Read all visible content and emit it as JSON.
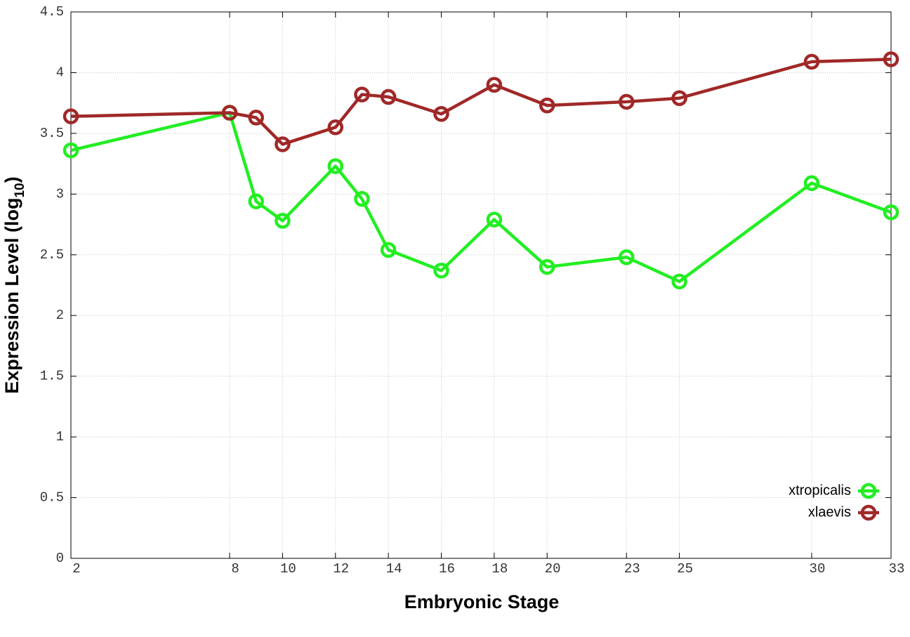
{
  "chart_data": {
    "type": "line",
    "x_label": "Embryonic Stage",
    "y_label": {
      "text": "Expression Level (log",
      "subscript": "10",
      "suffix": ")"
    },
    "x": [
      2,
      8,
      9,
      10,
      12,
      13,
      14,
      16,
      18,
      20,
      23,
      25,
      30,
      33
    ],
    "series": [
      {
        "name": "xtropicalis",
        "color": "#22ee22",
        "values": [
          3.36,
          3.67,
          2.94,
          2.78,
          3.23,
          2.96,
          2.54,
          2.37,
          2.79,
          2.4,
          2.48,
          2.28,
          3.09,
          2.85
        ]
      },
      {
        "name": "xlaevis",
        "color": "#a02828",
        "values": [
          3.64,
          3.67,
          3.63,
          3.41,
          3.55,
          3.82,
          3.8,
          3.66,
          3.9,
          3.73,
          3.76,
          3.79,
          4.09,
          4.11
        ]
      }
    ],
    "xlim": [
      2,
      33
    ],
    "xticks": [
      2,
      8,
      10,
      12,
      14,
      16,
      18,
      20,
      23,
      25,
      30,
      33
    ],
    "ylim": [
      0,
      4.5
    ],
    "yticks": [
      0,
      0.5,
      1,
      1.5,
      2,
      2.5,
      3,
      3.5,
      4,
      4.5
    ],
    "grid": true,
    "legend": "bottom-right"
  }
}
